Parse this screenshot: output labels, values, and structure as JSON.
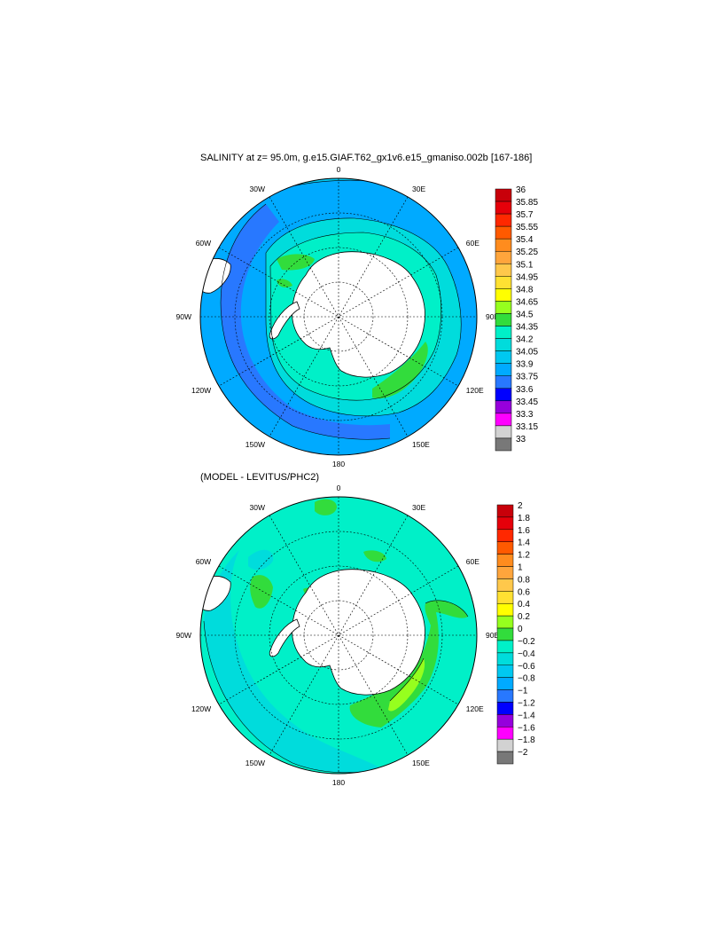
{
  "panels": [
    {
      "id": "top",
      "title": "SALINITY at z=  95.0m, g.e15.GIAF.T62_gx1v6.e15_gmaniso.002b [167-186]",
      "lon_labels": [
        "0",
        "30E",
        "60E",
        "90E",
        "120E",
        "150E",
        "180",
        "150W",
        "120W",
        "90W",
        "60W",
        "30W"
      ],
      "colorbar": {
        "labels": [
          "36",
          "35.85",
          "35.7",
          "35.55",
          "35.4",
          "35.25",
          "35.1",
          "34.95",
          "34.8",
          "34.65",
          "34.5",
          "34.35",
          "34.2",
          "34.05",
          "33.9",
          "33.75",
          "33.6",
          "33.45",
          "33.3",
          "33.15",
          "33"
        ],
        "colors": [
          "#c8000a",
          "#e6000a",
          "#ff2800",
          "#ff5a00",
          "#ff8c1e",
          "#ffa53c",
          "#ffc84b",
          "#ffe132",
          "#ffff00",
          "#96ff1e",
          "#32dc3c",
          "#00f0c8",
          "#00dcdc",
          "#00c8f0",
          "#00aaff",
          "#2878ff",
          "#0000ff",
          "#9600dc",
          "#ff00ff",
          "#d2d2d2",
          "#787878"
        ]
      }
    },
    {
      "id": "bottom",
      "title": "(MODEL - LEVITUS/PHC2)",
      "lon_labels": [
        "0",
        "30E",
        "60E",
        "90E",
        "120E",
        "150E",
        "180",
        "150W",
        "120W",
        "90W",
        "60W",
        "30W"
      ],
      "colorbar": {
        "labels": [
          "2",
          "1.8",
          "1.6",
          "1.4",
          "1.2",
          "1",
          "0.8",
          "0.6",
          "0.4",
          "0.2",
          "0",
          "−0.2",
          "−0.4",
          "−0.6",
          "−0.8",
          "−1",
          "−1.2",
          "−1.4",
          "−1.6",
          "−1.8",
          "−2"
        ],
        "colors": [
          "#c8000a",
          "#e6000a",
          "#ff2800",
          "#ff5a00",
          "#ff8c1e",
          "#ffa53c",
          "#ffc84b",
          "#ffe132",
          "#ffff00",
          "#96ff1e",
          "#32dc3c",
          "#00f0c8",
          "#00dcdc",
          "#00c8f0",
          "#00aaff",
          "#2878ff",
          "#0000ff",
          "#9600dc",
          "#ff00ff",
          "#d2d2d2",
          "#787878"
        ]
      }
    }
  ]
}
